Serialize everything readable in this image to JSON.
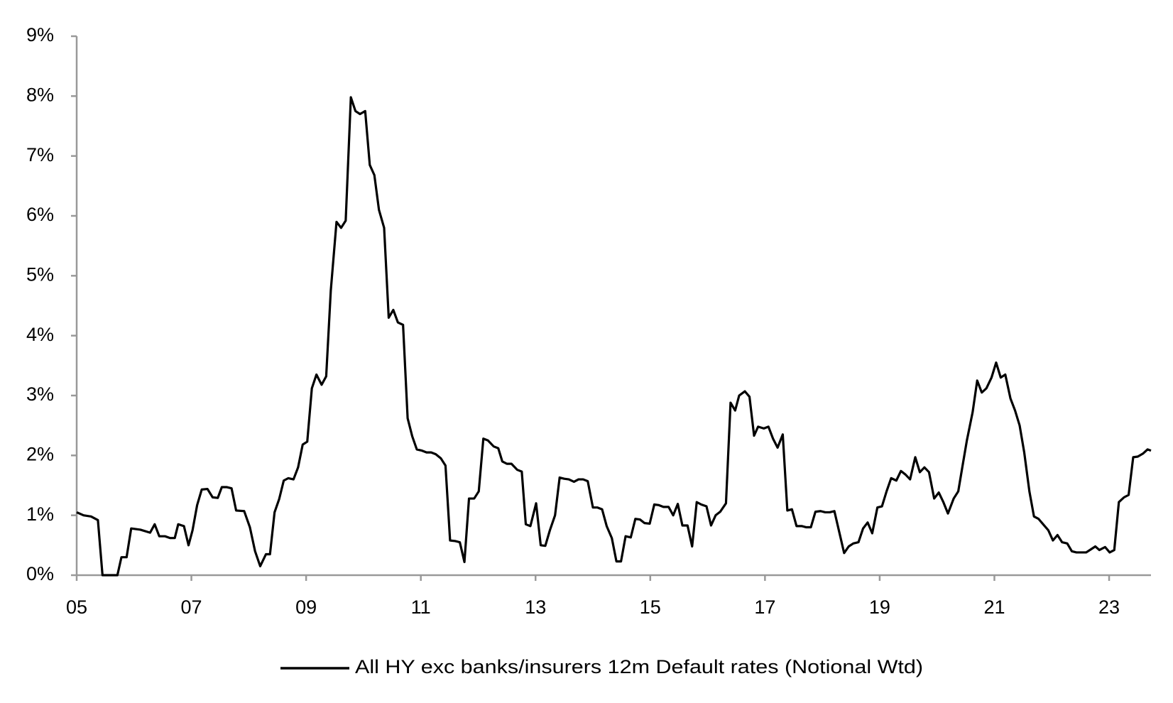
{
  "chart_data": {
    "type": "line",
    "legend": "bottom",
    "x": [
      2005.0,
      2005.12,
      2005.25,
      2005.37,
      2005.45,
      2005.71,
      2005.78,
      2005.87,
      2005.95,
      2006.11,
      2006.28,
      2006.36,
      2006.44,
      2006.54,
      2006.63,
      2006.71,
      2006.77,
      2006.87,
      2006.95,
      2007.02,
      2007.1,
      2007.18,
      2007.28,
      2007.37,
      2007.46,
      2007.53,
      2007.62,
      2007.7,
      2007.78,
      2007.92,
      2008.02,
      2008.11,
      2008.2,
      2008.3,
      2008.37,
      2008.45,
      2008.53,
      2008.61,
      2008.69,
      2008.78,
      2008.86,
      2008.94,
      2009.02,
      2009.1,
      2009.18,
      2009.27,
      2009.35,
      2009.43,
      2009.53,
      2009.61,
      2009.69,
      2009.78,
      2009.86,
      2009.94,
      2010.03,
      2010.11,
      2010.19,
      2010.27,
      2010.36,
      2010.44,
      2010.52,
      2010.6,
      2010.69,
      2010.77,
      2010.85,
      2010.93,
      2011.02,
      2011.1,
      2011.18,
      2011.26,
      2011.35,
      2011.43,
      2011.51,
      2011.6,
      2011.68,
      2011.76,
      2011.84,
      2011.93,
      2012.01,
      2012.09,
      2012.17,
      2012.27,
      2012.35,
      2012.42,
      2012.5,
      2012.58,
      2012.68,
      2012.76,
      2012.83,
      2012.91,
      2013.01,
      2013.09,
      2013.17,
      2013.25,
      2013.34,
      2013.42,
      2013.5,
      2013.58,
      2013.67,
      2013.75,
      2013.83,
      2013.91,
      2014.0,
      2014.08,
      2014.16,
      2014.24,
      2014.33,
      2014.41,
      2014.49,
      2014.57,
      2014.66,
      2014.74,
      2014.82,
      2014.9,
      2014.99,
      2015.07,
      2015.15,
      2015.23,
      2015.32,
      2015.4,
      2015.48,
      2015.56,
      2015.65,
      2015.73,
      2015.81,
      2015.89,
      2015.98,
      2016.06,
      2016.14,
      2016.22,
      2016.32,
      2016.4,
      2016.48,
      2016.55,
      2016.65,
      2016.73,
      2016.81,
      2016.88,
      2016.98,
      2017.06,
      2017.14,
      2017.22,
      2017.31,
      2017.39,
      2017.47,
      2017.55,
      2017.64,
      2017.72,
      2017.8,
      2017.88,
      2017.97,
      2018.05,
      2018.13,
      2018.21,
      2018.3,
      2018.38,
      2018.46,
      2018.54,
      2018.63,
      2018.71,
      2018.79,
      2018.87,
      2018.96,
      2019.04,
      2019.12,
      2019.2,
      2019.29,
      2019.37,
      2019.45,
      2019.53,
      2019.62,
      2019.7,
      2019.78,
      2019.86,
      2019.95,
      2020.03,
      2020.11,
      2020.19,
      2020.29,
      2020.37,
      2020.44,
      2020.52,
      2020.62,
      2020.7,
      2020.78,
      2020.86,
      2020.95,
      2021.03,
      2021.11,
      2021.19,
      2021.28,
      2021.36,
      2021.44,
      2021.52,
      2021.61,
      2021.69,
      2021.77,
      2021.85,
      2021.94,
      2022.02,
      2022.1,
      2022.18,
      2022.27,
      2022.35,
      2022.43,
      2022.51,
      2022.6,
      2022.68,
      2022.76,
      2022.83,
      2022.93,
      2023.01,
      2023.09,
      2023.17,
      2023.26,
      2023.34,
      2023.42,
      2023.5,
      2023.59,
      2023.67,
      2023.73
    ],
    "series": [
      {
        "name": "All HY exc banks/insurers 12m Default rates (Notional Wtd)",
        "color": "#000000",
        "values": [
          1.05,
          1.0,
          0.98,
          0.92,
          0.0,
          0.0,
          0.3,
          0.3,
          0.78,
          0.76,
          0.71,
          0.85,
          0.65,
          0.65,
          0.62,
          0.62,
          0.85,
          0.82,
          0.5,
          0.75,
          1.17,
          1.43,
          1.44,
          1.3,
          1.29,
          1.47,
          1.47,
          1.45,
          1.08,
          1.07,
          0.8,
          0.4,
          0.15,
          0.35,
          0.35,
          1.05,
          1.27,
          1.58,
          1.62,
          1.6,
          1.8,
          2.18,
          2.23,
          3.12,
          3.35,
          3.18,
          3.32,
          4.75,
          5.9,
          5.8,
          5.92,
          7.98,
          7.75,
          7.7,
          7.75,
          6.85,
          6.68,
          6.1,
          5.8,
          4.3,
          4.43,
          4.22,
          4.18,
          2.62,
          2.32,
          2.1,
          2.08,
          2.05,
          2.05,
          2.02,
          1.95,
          1.83,
          0.58,
          0.57,
          0.55,
          0.22,
          1.28,
          1.28,
          1.4,
          2.28,
          2.25,
          2.15,
          2.12,
          1.9,
          1.86,
          1.86,
          1.76,
          1.73,
          0.85,
          0.82,
          1.2,
          0.5,
          0.49,
          0.75,
          1.0,
          1.63,
          1.61,
          1.6,
          1.56,
          1.6,
          1.6,
          1.57,
          1.13,
          1.13,
          1.1,
          0.82,
          0.62,
          0.23,
          0.23,
          0.65,
          0.63,
          0.94,
          0.93,
          0.87,
          0.86,
          1.18,
          1.17,
          1.14,
          1.14,
          1.0,
          1.19,
          0.83,
          0.83,
          0.48,
          1.22,
          1.18,
          1.15,
          0.83,
          1.0,
          1.06,
          1.2,
          2.88,
          2.75,
          3.0,
          3.07,
          2.98,
          2.33,
          2.48,
          2.45,
          2.48,
          2.28,
          2.13,
          2.35,
          1.08,
          1.1,
          0.82,
          0.82,
          0.8,
          0.8,
          1.06,
          1.07,
          1.05,
          1.05,
          1.07,
          0.7,
          0.37,
          0.48,
          0.53,
          0.55,
          0.78,
          0.88,
          0.7,
          1.13,
          1.15,
          1.4,
          1.62,
          1.58,
          1.74,
          1.68,
          1.6,
          1.97,
          1.72,
          1.8,
          1.72,
          1.28,
          1.38,
          1.22,
          1.03,
          1.28,
          1.4,
          1.8,
          2.25,
          2.72,
          3.25,
          3.05,
          3.12,
          3.3,
          3.55,
          3.3,
          3.35,
          2.95,
          2.75,
          2.5,
          2.05,
          1.4,
          0.98,
          0.94,
          0.85,
          0.75,
          0.58,
          0.67,
          0.55,
          0.53,
          0.4,
          0.38,
          0.38,
          0.38,
          0.43,
          0.48,
          0.42,
          0.47,
          0.38,
          0.42,
          1.22,
          1.3,
          1.34,
          1.97,
          1.98,
          2.03,
          2.1,
          2.08
        ]
      }
    ],
    "xlim": [
      2005,
      2023.73
    ],
    "xticks": [
      {
        "value": 2005,
        "label": "05"
      },
      {
        "value": 2007,
        "label": "07"
      },
      {
        "value": 2009,
        "label": "09"
      },
      {
        "value": 2011,
        "label": "11"
      },
      {
        "value": 2013,
        "label": "13"
      },
      {
        "value": 2015,
        "label": "15"
      },
      {
        "value": 2017,
        "label": "17"
      },
      {
        "value": 2019,
        "label": "19"
      },
      {
        "value": 2021,
        "label": "21"
      },
      {
        "value": 2023,
        "label": "23"
      }
    ],
    "ylim": [
      0,
      9
    ],
    "yticks": [
      {
        "value": 0,
        "label": "0%"
      },
      {
        "value": 1,
        "label": "1%"
      },
      {
        "value": 2,
        "label": "2%"
      },
      {
        "value": 3,
        "label": "3%"
      },
      {
        "value": 4,
        "label": "4%"
      },
      {
        "value": 5,
        "label": "5%"
      },
      {
        "value": 6,
        "label": "6%"
      },
      {
        "value": 7,
        "label": "7%"
      },
      {
        "value": 8,
        "label": "8%"
      },
      {
        "value": 9,
        "label": "9%"
      }
    ],
    "grid": false
  }
}
